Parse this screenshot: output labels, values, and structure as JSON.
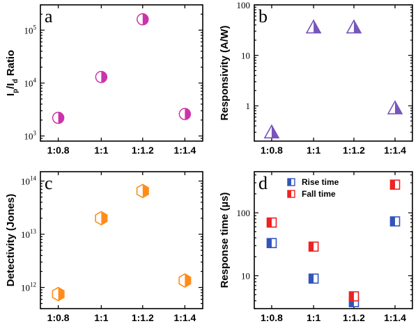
{
  "chart_data": [
    {
      "type": "scatter",
      "panel_letter": "a",
      "ylabel_parts": [
        "I",
        "p",
        "/I",
        "d",
        " Ratio"
      ],
      "yscale": "log",
      "ylim": [
        800,
        300000
      ],
      "yticks": [
        {
          "base": "10",
          "exp": "3",
          "value": 1000
        },
        {
          "base": "10",
          "exp": "4",
          "value": 10000
        },
        {
          "base": "10",
          "exp": "5",
          "value": 100000
        }
      ],
      "categories": [
        "1:0.8",
        "1:1",
        "1:1.2",
        "1:1.4"
      ],
      "marker": "half-filled circle",
      "series": [
        {
          "color": "#cc33aa",
          "values": [
            2200,
            13000,
            160000,
            2600
          ]
        }
      ]
    },
    {
      "type": "scatter",
      "panel_letter": "b",
      "ylabel": "Responsivity (A/W)",
      "yscale": "log",
      "ylim": [
        0.2,
        100
      ],
      "yticks": [
        {
          "label": "1",
          "value": 1
        },
        {
          "label": "10",
          "value": 10
        },
        {
          "label": "100",
          "value": 100
        }
      ],
      "categories": [
        "1:0.8",
        "1:1",
        "1:1.2",
        "1:1.4"
      ],
      "marker": "half-filled triangle",
      "series": [
        {
          "color": "#7755bb",
          "values": [
            0.3,
            36,
            36,
            0.9
          ]
        }
      ]
    },
    {
      "type": "scatter",
      "panel_letter": "c",
      "ylabel": "Detectivity (Jones)",
      "yscale": "log",
      "ylim": [
        400000000000,
        150000000000000
      ],
      "yticks": [
        {
          "base": "10",
          "exp": "12",
          "value": 1000000000000
        },
        {
          "base": "10",
          "exp": "13",
          "value": 10000000000000
        },
        {
          "base": "10",
          "exp": "14",
          "value": 100000000000000
        }
      ],
      "categories": [
        "1:0.8",
        "1:1",
        "1:1.2",
        "1:1.4"
      ],
      "marker": "half-filled hexagon",
      "series": [
        {
          "color": "#ff8c1a",
          "values": [
            750000000000,
            20000000000000,
            65000000000000,
            1350000000000
          ]
        }
      ]
    },
    {
      "type": "scatter",
      "panel_letter": "d",
      "ylabel": "Response time (µs)",
      "yscale": "log",
      "ylim": [
        3,
        450
      ],
      "yticks": [
        {
          "label": "10",
          "value": 10
        },
        {
          "label": "100",
          "value": 100
        }
      ],
      "categories": [
        "1:0.8",
        "1:1",
        "1:1.2",
        "1:1.4"
      ],
      "marker": "half-filled square",
      "legend_position": "top",
      "series": [
        {
          "name": "Rise time",
          "color": "#3355bb",
          "values": [
            33,
            9,
            3.8,
            73
          ]
        },
        {
          "name": "Fall time",
          "color": "#ee2222",
          "values": [
            70,
            29,
            4.7,
            280
          ]
        }
      ]
    }
  ]
}
